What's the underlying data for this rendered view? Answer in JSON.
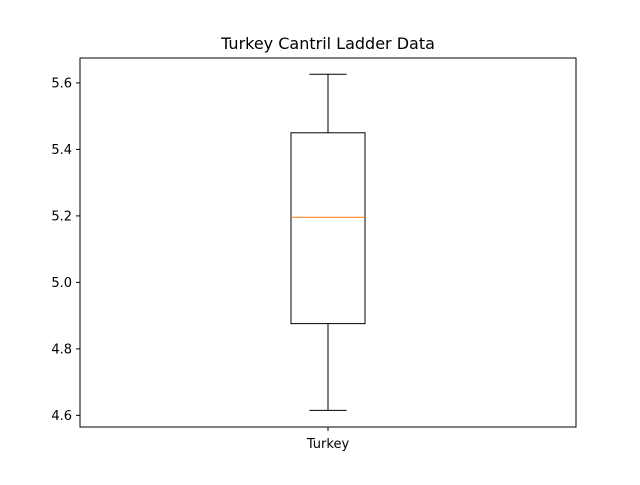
{
  "chart_data": {
    "type": "box",
    "title": "Turkey Cantril Ladder Data",
    "xlabel": "",
    "ylabel": "",
    "categories": [
      "Turkey"
    ],
    "boxes": [
      {
        "name": "Turkey",
        "whisker_low": 4.615,
        "q1": 4.876,
        "median": 5.196,
        "q3": 5.45,
        "whisker_high": 5.626
      }
    ],
    "ylim": [
      4.565,
      5.675
    ],
    "yticks": [
      4.6,
      4.8,
      5.0,
      5.2,
      5.4,
      5.6
    ],
    "ytick_labels": [
      "4.6",
      "4.8",
      "5.0",
      "5.2",
      "5.4",
      "5.6"
    ],
    "grid": false,
    "colors": {
      "box": "#000000",
      "median": "#ff7f0e",
      "whisker": "#000000",
      "background": "#ffffff"
    }
  }
}
